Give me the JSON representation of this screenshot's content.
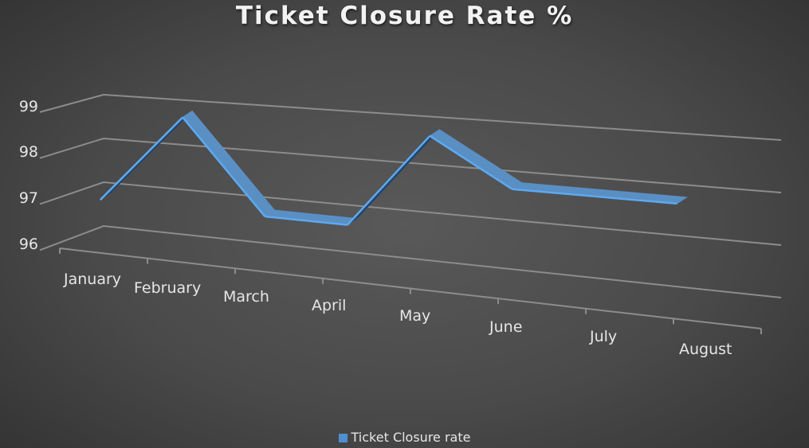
{
  "chart_data": {
    "type": "line",
    "variant": "3d-line",
    "title": "Ticket Closure Rate %",
    "xlabel": "",
    "ylabel": "",
    "categories": [
      "January",
      "February",
      "March",
      "April",
      "May",
      "June",
      "July",
      "August"
    ],
    "series": [
      {
        "name": "Ticket Closure rate",
        "values": [
          97.0,
          98.9,
          97.0,
          97.0,
          98.9,
          98.0,
          98.0,
          98.0
        ],
        "color": "#4f8fd0"
      }
    ],
    "yticks": [
      "96",
      "97",
      "98",
      "99"
    ],
    "ylim": [
      96,
      99
    ],
    "grid": true,
    "legend_position": "bottom"
  },
  "colors": {
    "ribbon_top": "#5a8fc4",
    "ribbon_side": "#22466f",
    "ribbon_edge": "#5da9f0",
    "gridline": "#8c8c8c",
    "text": "#e6e6e6"
  }
}
